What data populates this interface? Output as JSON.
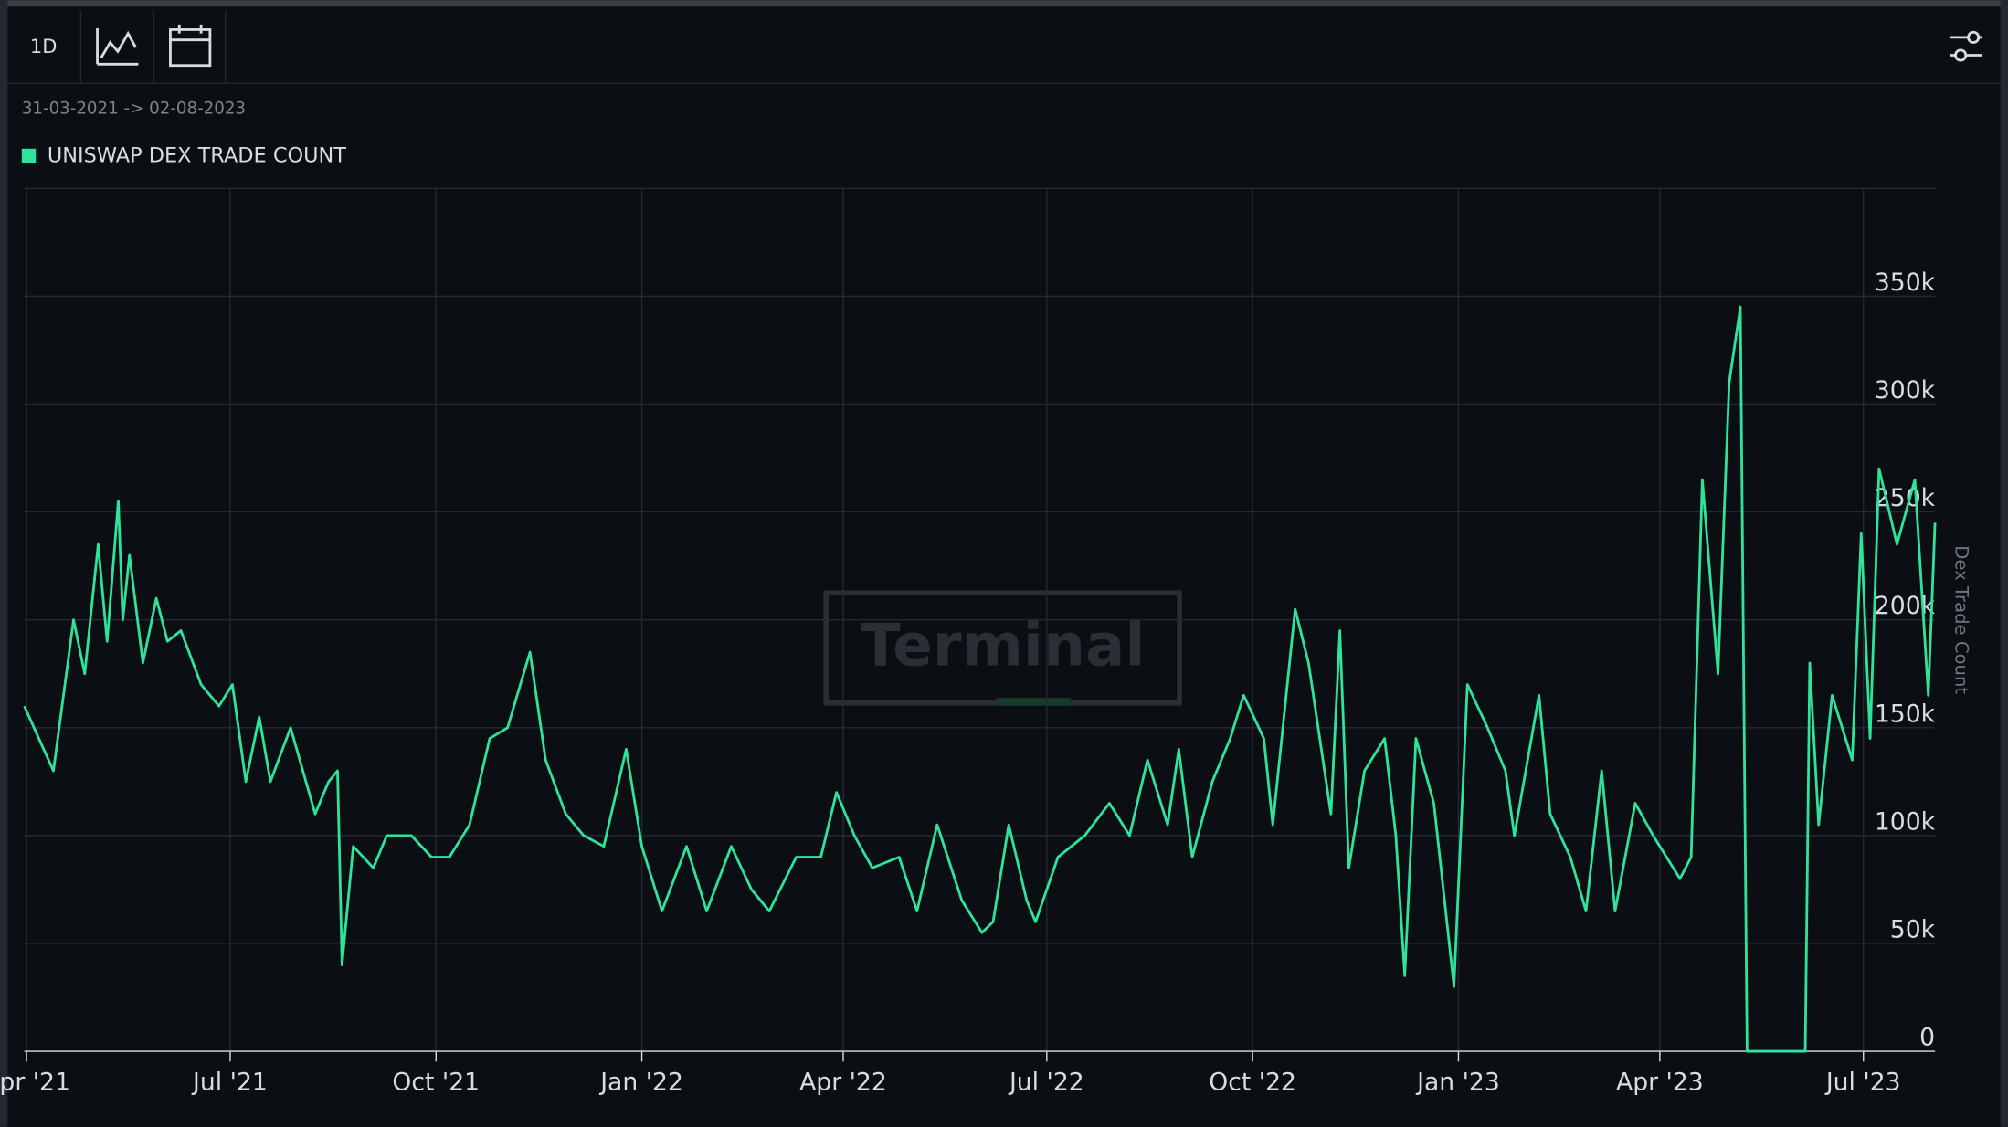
{
  "chart_data": {
    "type": "line",
    "interval": "1D",
    "subtitle": "31-03-2021 -> 02-08-2023",
    "ylabel": "Dex Trade Count",
    "watermark": "Terminal",
    "xlim": [
      "2021-03-31",
      "2023-08-02"
    ],
    "xticks": [
      {
        "value": "2021-04-01",
        "label": "Apr '21"
      },
      {
        "value": "2021-07-01",
        "label": "Jul '21"
      },
      {
        "value": "2021-10-01",
        "label": "Oct '21"
      },
      {
        "value": "2022-01-01",
        "label": "Jan '22"
      },
      {
        "value": "2022-04-01",
        "label": "Apr '22"
      },
      {
        "value": "2022-07-01",
        "label": "Jul '22"
      },
      {
        "value": "2022-10-01",
        "label": "Oct '22"
      },
      {
        "value": "2023-01-01",
        "label": "Jan '23"
      },
      {
        "value": "2023-04-01",
        "label": "Apr '23"
      },
      {
        "value": "2023-07-01",
        "label": "Jul '23"
      }
    ],
    "ylim": [
      0,
      400000
    ],
    "yticks": [
      0,
      {
        "value": 50000,
        "label": "50k"
      },
      {
        "value": 100000,
        "label": "100k"
      },
      {
        "value": 150000,
        "label": "150k"
      },
      {
        "value": 200000,
        "label": "200k"
      },
      {
        "value": 250000,
        "label": "250k"
      },
      {
        "value": 300000,
        "label": "300k"
      },
      {
        "value": 350000,
        "label": "350k"
      }
    ],
    "grid": true,
    "x": [
      "2021-03-31",
      "2021-04-13",
      "2021-04-22",
      "2021-04-27",
      "2021-05-03",
      "2021-05-07",
      "2021-05-12",
      "2021-05-14",
      "2021-05-17",
      "2021-05-23",
      "2021-05-29",
      "2021-06-03",
      "2021-06-09",
      "2021-06-18",
      "2021-06-26",
      "2021-07-02",
      "2021-07-08",
      "2021-07-14",
      "2021-07-19",
      "2021-07-28",
      "2021-08-08",
      "2021-08-14",
      "2021-08-18",
      "2021-08-20",
      "2021-08-25",
      "2021-09-03",
      "2021-09-09",
      "2021-09-20",
      "2021-09-29",
      "2021-10-07",
      "2021-10-16",
      "2021-10-25",
      "2021-11-02",
      "2021-11-12",
      "2021-11-19",
      "2021-11-28",
      "2021-12-06",
      "2021-12-15",
      "2021-12-25",
      "2022-01-01",
      "2022-01-10",
      "2022-01-21",
      "2022-01-30",
      "2022-02-10",
      "2022-02-19",
      "2022-02-27",
      "2022-03-11",
      "2022-03-22",
      "2022-03-29",
      "2022-04-06",
      "2022-04-14",
      "2022-04-26",
      "2022-05-04",
      "2022-05-13",
      "2022-05-24",
      "2022-06-02",
      "2022-06-07",
      "2022-06-14",
      "2022-06-22",
      "2022-06-26",
      "2022-07-06",
      "2022-07-18",
      "2022-07-29",
      "2022-08-07",
      "2022-08-15",
      "2022-08-24",
      "2022-08-29",
      "2022-09-04",
      "2022-09-13",
      "2022-09-21",
      "2022-09-27",
      "2022-10-06",
      "2022-10-10",
      "2022-10-20",
      "2022-10-26",
      "2022-11-05",
      "2022-11-09",
      "2022-11-13",
      "2022-11-20",
      "2022-11-29",
      "2022-12-04",
      "2022-12-08",
      "2022-12-13",
      "2022-12-21",
      "2022-12-30",
      "2023-01-05",
      "2023-01-14",
      "2023-01-22",
      "2023-01-26",
      "2023-02-06",
      "2023-02-11",
      "2023-02-20",
      "2023-02-27",
      "2023-03-06",
      "2023-03-12",
      "2023-03-21",
      "2023-03-29",
      "2023-04-10",
      "2023-04-15",
      "2023-04-20",
      "2023-04-27",
      "2023-05-02",
      "2023-05-07",
      "2023-05-10",
      "2023-06-05",
      "2023-06-07",
      "2023-06-11",
      "2023-06-17",
      "2023-06-26",
      "2023-06-30",
      "2023-07-04",
      "2023-07-08",
      "2023-07-16",
      "2023-07-24",
      "2023-07-30",
      "2023-08-02"
    ],
    "series": [
      {
        "name": "UNISWAP DEX TRADE COUNT",
        "color": "#2fe39b",
        "values": [
          160000,
          130000,
          200000,
          175000,
          235000,
          190000,
          255000,
          200000,
          230000,
          180000,
          210000,
          190000,
          195000,
          170000,
          160000,
          170000,
          125000,
          155000,
          125000,
          150000,
          110000,
          125000,
          130000,
          40000,
          95000,
          85000,
          100000,
          100000,
          90000,
          90000,
          105000,
          145000,
          150000,
          185000,
          135000,
          110000,
          100000,
          95000,
          140000,
          95000,
          65000,
          95000,
          65000,
          95000,
          75000,
          65000,
          90000,
          90000,
          120000,
          100000,
          85000,
          90000,
          65000,
          105000,
          70000,
          55000,
          60000,
          105000,
          70000,
          60000,
          90000,
          100000,
          115000,
          100000,
          135000,
          105000,
          140000,
          90000,
          125000,
          145000,
          165000,
          145000,
          105000,
          205000,
          180000,
          110000,
          195000,
          85000,
          130000,
          145000,
          100000,
          35000,
          145000,
          115000,
          30000,
          170000,
          150000,
          130000,
          100000,
          165000,
          110000,
          90000,
          65000,
          130000,
          65000,
          115000,
          100000,
          80000,
          90000,
          265000,
          175000,
          310000,
          345000,
          0,
          0,
          180000,
          105000,
          165000,
          135000,
          240000,
          145000,
          270000,
          235000,
          265000,
          165000,
          245000
        ]
      }
    ]
  }
}
